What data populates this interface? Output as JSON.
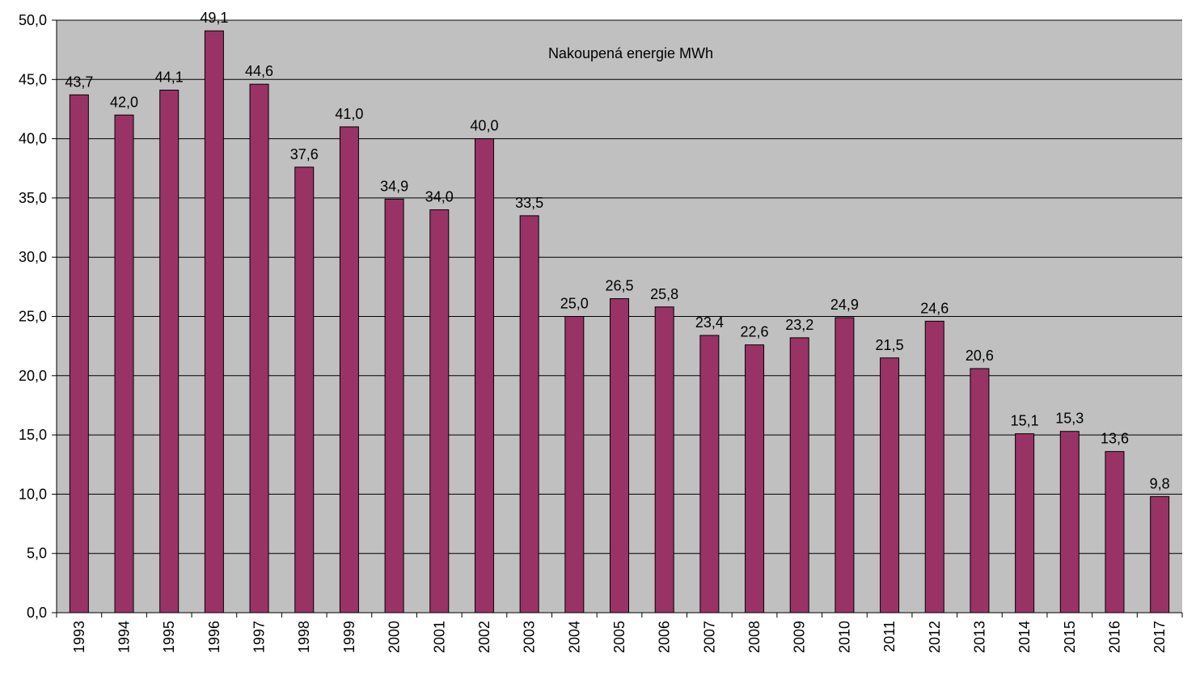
{
  "chart_data": {
    "type": "bar",
    "title": "Nakoupená energie MWh",
    "categories": [
      "1993",
      "1994",
      "1995",
      "1996",
      "1997",
      "1998",
      "1999",
      "2000",
      "2001",
      "2002",
      "2003",
      "2004",
      "2005",
      "2006",
      "2007",
      "2008",
      "2009",
      "2010",
      "2011",
      "2012",
      "2013",
      "2014",
      "2015",
      "2016",
      "2017"
    ],
    "values": [
      43.7,
      42.0,
      44.1,
      49.1,
      44.6,
      37.6,
      41.0,
      34.9,
      34.0,
      40.0,
      33.5,
      25.0,
      26.5,
      25.8,
      23.4,
      22.6,
      23.2,
      24.9,
      21.5,
      24.6,
      20.6,
      15.1,
      15.3,
      13.6,
      9.8
    ],
    "value_labels": [
      "43,7",
      "42,0",
      "44,1",
      "49,1",
      "44,6",
      "37,6",
      "41,0",
      "34,9",
      "34,0",
      "40,0",
      "33,5",
      "25,0",
      "26,5",
      "25,8",
      "23,4",
      "22,6",
      "23,2",
      "24,9",
      "21,5",
      "24,6",
      "20,6",
      "15,1",
      "15,3",
      "13,6",
      "9,8"
    ],
    "y_ticks": [
      "0,0",
      "5,0",
      "10,0",
      "15,0",
      "20,0",
      "25,0",
      "30,0",
      "35,0",
      "40,0",
      "45,0",
      "50,0"
    ],
    "ylim": [
      0,
      50
    ],
    "xlabel": "",
    "ylabel": "",
    "grid": true,
    "colors": {
      "bar_fill": "#993366",
      "bar_stroke": "#000000",
      "plot_background": "#c0c0c0",
      "gridline": "#000000"
    }
  }
}
